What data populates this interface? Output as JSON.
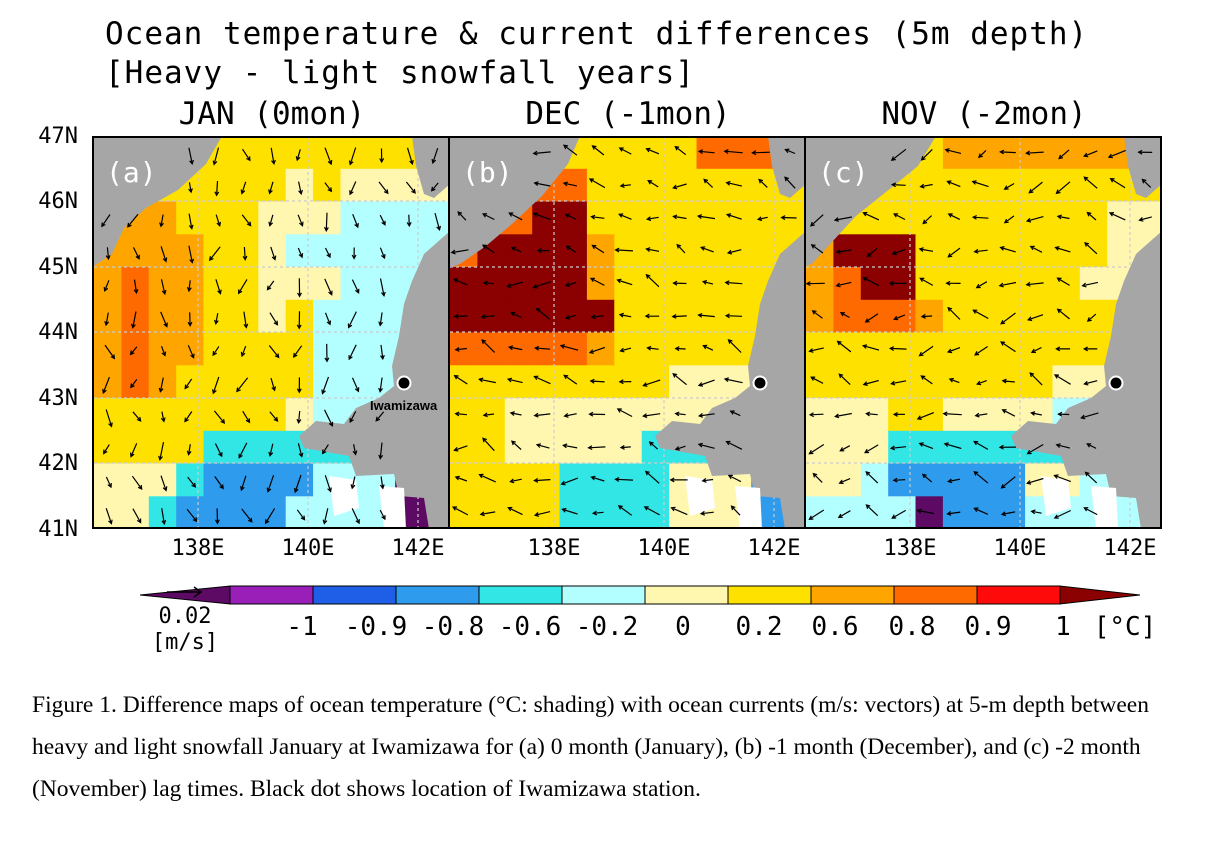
{
  "title_line1": "Ocean temperature & current differences (5m depth)",
  "title_line2": "[Heavy - light snowfall years]",
  "panels": [
    {
      "title": "JAN (0mon)",
      "letter": "(a)"
    },
    {
      "title": "DEC (-1mon)",
      "letter": "(b)"
    },
    {
      "title": "NOV (-2mon)",
      "letter": "(c)"
    }
  ],
  "lat_labels": [
    "47N",
    "46N",
    "45N",
    "44N",
    "43N",
    "42N",
    "41N"
  ],
  "lon_labels": [
    "138E",
    "140E",
    "142E"
  ],
  "station_label": "Iwamizawa",
  "colorbar": {
    "labels": [
      "-1",
      "-0.9",
      "-0.8",
      "-0.6",
      "-0.2",
      "0",
      "0.2",
      "0.6",
      "0.8",
      "0.9",
      "1"
    ],
    "unit": "[°C]",
    "colors": [
      "#5c0a63",
      "#9a1fb8",
      "#1f5fe8",
      "#2f9bec",
      "#33e6e6",
      "#b3ffff",
      "#fff7b0",
      "#ffe100",
      "#ffa500",
      "#ff6a00",
      "#ff0a0a",
      "#8b0000"
    ]
  },
  "reference_vector": {
    "value": "0.02",
    "unit": "[m/s]"
  },
  "caption": "Figure 1. Difference maps of ocean temperature (°C: shading) with ocean currents (m/s: vectors) at 5-m depth between heavy and light snowfall January at Iwamizawa for (a) 0 month (January), (b) -1 month (December), and (c) -2 month (November) lag times. Black dot shows location of Iwamizawa station."
}
